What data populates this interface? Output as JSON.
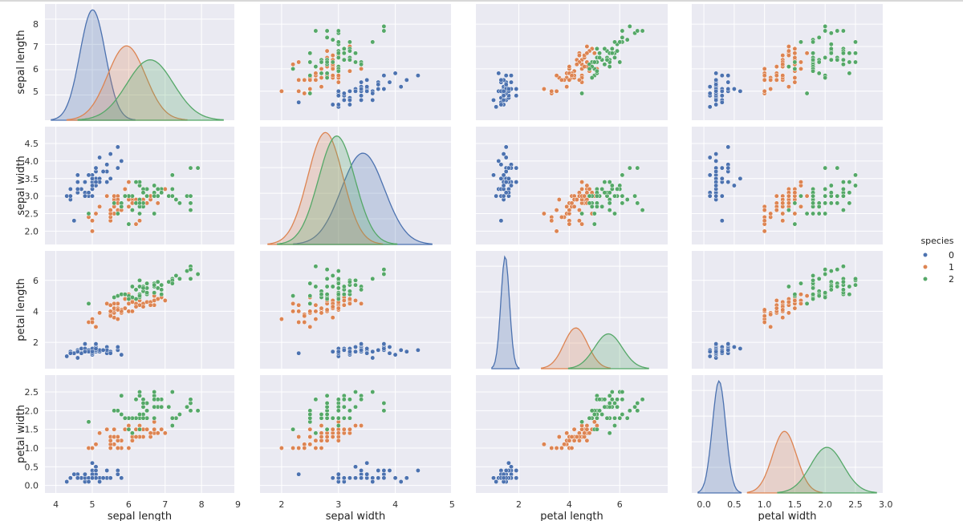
{
  "chart_data": {
    "type": "pairplot",
    "title": "",
    "variables": [
      "sepal length",
      "sepal width",
      "petal length",
      "petal width"
    ],
    "axis_labels": {
      "x": [
        "sepal length",
        "sepal width",
        "petal length",
        "petal width"
      ],
      "y": [
        "sepal length",
        "sepal width",
        "petal length",
        "petal width"
      ]
    },
    "ranges": [
      [
        3.7,
        8.9
      ],
      [
        1.62,
        4.98
      ],
      [
        0.3,
        7.9
      ],
      [
        -0.2,
        2.95
      ]
    ],
    "ticks": [
      [
        4,
        5,
        6,
        7,
        8,
        9
      ],
      [
        2,
        3,
        4,
        5
      ],
      [
        2,
        4,
        6
      ],
      [
        0.0,
        0.5,
        1.0,
        1.5,
        2.0,
        2.5,
        3.0
      ]
    ],
    "y_ticks": [
      [
        "5",
        "6",
        "7",
        "8"
      ],
      [
        "2.0",
        "2.5",
        "3.0",
        "3.5",
        "4.0",
        "4.5"
      ],
      [
        "2",
        "4",
        "6"
      ],
      [
        "0.0",
        "0.5",
        "1.0",
        "1.5",
        "2.0",
        "2.5"
      ]
    ],
    "x_ticks": [
      [
        "4",
        "5",
        "6",
        "7",
        "8",
        "9"
      ],
      [
        "2",
        "3",
        "4",
        "5"
      ],
      [
        "2",
        "4",
        "6"
      ],
      [
        "0.0",
        "0.5",
        "1.0",
        "1.5",
        "2.0",
        "2.5",
        "3.0"
      ]
    ],
    "diag_kde": [
      {
        "name": "0",
        "mean": [
          5.01,
          3.43,
          1.46,
          0.25
        ],
        "sd": [
          0.35,
          0.38,
          0.17,
          0.11
        ]
      },
      {
        "name": "1",
        "mean": [
          5.94,
          2.77,
          4.26,
          1.33
        ],
        "sd": [
          0.52,
          0.31,
          0.47,
          0.2
        ]
      },
      {
        "name": "2",
        "mean": [
          6.59,
          2.97,
          5.55,
          2.03
        ],
        "sd": [
          0.64,
          0.32,
          0.55,
          0.27
        ]
      }
    ],
    "legend": {
      "title": "species",
      "position": "right",
      "entries": [
        {
          "label": "0",
          "color": "#4c72b0"
        },
        {
          "label": "1",
          "color": "#dd8452"
        },
        {
          "label": "2",
          "color": "#55a868"
        }
      ]
    },
    "style": {
      "panel_background": "#eaeaf2",
      "grid_color": "#ffffff",
      "point_edge": "#ffffff",
      "grid": true
    },
    "series": [
      {
        "name": "0",
        "points": [
          [
            5.1,
            3.5,
            1.4,
            0.2
          ],
          [
            4.9,
            3.0,
            1.4,
            0.2
          ],
          [
            4.7,
            3.2,
            1.3,
            0.2
          ],
          [
            4.6,
            3.1,
            1.5,
            0.2
          ],
          [
            5.0,
            3.6,
            1.4,
            0.2
          ],
          [
            5.4,
            3.9,
            1.7,
            0.4
          ],
          [
            4.6,
            3.4,
            1.4,
            0.3
          ],
          [
            5.0,
            3.4,
            1.5,
            0.2
          ],
          [
            4.4,
            2.9,
            1.4,
            0.2
          ],
          [
            4.9,
            3.1,
            1.5,
            0.1
          ],
          [
            5.4,
            3.7,
            1.5,
            0.2
          ],
          [
            4.8,
            3.4,
            1.6,
            0.2
          ],
          [
            4.8,
            3.0,
            1.4,
            0.1
          ],
          [
            4.3,
            3.0,
            1.1,
            0.1
          ],
          [
            5.8,
            4.0,
            1.2,
            0.2
          ],
          [
            5.7,
            4.4,
            1.5,
            0.4
          ],
          [
            5.4,
            3.9,
            1.3,
            0.4
          ],
          [
            5.1,
            3.5,
            1.4,
            0.3
          ],
          [
            5.7,
            3.8,
            1.7,
            0.3
          ],
          [
            5.1,
            3.8,
            1.5,
            0.3
          ],
          [
            5.4,
            3.4,
            1.7,
            0.2
          ],
          [
            5.1,
            3.7,
            1.5,
            0.4
          ],
          [
            4.6,
            3.6,
            1.0,
            0.2
          ],
          [
            5.1,
            3.3,
            1.7,
            0.5
          ],
          [
            4.8,
            3.4,
            1.9,
            0.2
          ],
          [
            5.0,
            3.0,
            1.6,
            0.2
          ],
          [
            5.0,
            3.4,
            1.6,
            0.4
          ],
          [
            5.2,
            3.5,
            1.5,
            0.2
          ],
          [
            5.2,
            3.4,
            1.4,
            0.2
          ],
          [
            4.7,
            3.2,
            1.6,
            0.2
          ],
          [
            4.8,
            3.1,
            1.6,
            0.2
          ],
          [
            5.4,
            3.4,
            1.5,
            0.4
          ],
          [
            5.2,
            4.1,
            1.5,
            0.1
          ],
          [
            5.5,
            4.2,
            1.4,
            0.2
          ],
          [
            4.9,
            3.1,
            1.5,
            0.2
          ],
          [
            5.0,
            3.2,
            1.2,
            0.2
          ],
          [
            5.5,
            3.5,
            1.3,
            0.2
          ],
          [
            4.9,
            3.6,
            1.4,
            0.1
          ],
          [
            4.4,
            3.0,
            1.3,
            0.2
          ],
          [
            5.1,
            3.4,
            1.5,
            0.2
          ],
          [
            5.0,
            3.5,
            1.3,
            0.3
          ],
          [
            4.5,
            2.3,
            1.3,
            0.3
          ],
          [
            4.4,
            3.2,
            1.3,
            0.2
          ],
          [
            5.0,
            3.5,
            1.6,
            0.6
          ],
          [
            5.1,
            3.8,
            1.9,
            0.4
          ],
          [
            4.8,
            3.0,
            1.4,
            0.3
          ],
          [
            5.1,
            3.8,
            1.6,
            0.2
          ],
          [
            4.6,
            3.2,
            1.4,
            0.2
          ],
          [
            5.3,
            3.7,
            1.5,
            0.2
          ],
          [
            5.0,
            3.3,
            1.4,
            0.2
          ]
        ]
      },
      {
        "name": "1",
        "points": [
          [
            7.0,
            3.2,
            4.7,
            1.4
          ],
          [
            6.4,
            3.2,
            4.5,
            1.5
          ],
          [
            6.9,
            3.1,
            4.9,
            1.5
          ],
          [
            5.5,
            2.3,
            4.0,
            1.3
          ],
          [
            6.5,
            2.8,
            4.6,
            1.5
          ],
          [
            5.7,
            2.8,
            4.5,
            1.3
          ],
          [
            6.3,
            3.3,
            4.7,
            1.6
          ],
          [
            4.9,
            2.4,
            3.3,
            1.0
          ],
          [
            6.6,
            2.9,
            4.6,
            1.3
          ],
          [
            5.2,
            2.7,
            3.9,
            1.4
          ],
          [
            5.0,
            2.0,
            3.5,
            1.0
          ],
          [
            5.9,
            3.0,
            4.2,
            1.5
          ],
          [
            6.0,
            2.2,
            4.0,
            1.0
          ],
          [
            6.1,
            2.9,
            4.7,
            1.4
          ],
          [
            5.6,
            2.9,
            3.6,
            1.3
          ],
          [
            6.7,
            3.1,
            4.4,
            1.4
          ],
          [
            5.6,
            3.0,
            4.5,
            1.5
          ],
          [
            5.8,
            2.7,
            4.1,
            1.0
          ],
          [
            6.2,
            2.2,
            4.5,
            1.5
          ],
          [
            5.6,
            2.5,
            3.9,
            1.1
          ],
          [
            5.9,
            3.2,
            4.8,
            1.8
          ],
          [
            6.1,
            2.8,
            4.0,
            1.3
          ],
          [
            6.3,
            2.5,
            4.9,
            1.5
          ],
          [
            6.1,
            2.8,
            4.7,
            1.2
          ],
          [
            6.4,
            2.9,
            4.3,
            1.3
          ],
          [
            6.6,
            3.0,
            4.4,
            1.4
          ],
          [
            6.8,
            2.8,
            4.8,
            1.4
          ],
          [
            6.7,
            3.0,
            5.0,
            1.7
          ],
          [
            6.0,
            2.9,
            4.5,
            1.5
          ],
          [
            5.7,
            2.6,
            3.5,
            1.0
          ],
          [
            5.5,
            2.4,
            3.8,
            1.1
          ],
          [
            5.5,
            2.4,
            3.7,
            1.0
          ],
          [
            5.8,
            2.7,
            3.9,
            1.2
          ],
          [
            6.0,
            2.7,
            5.1,
            1.6
          ],
          [
            5.4,
            3.0,
            4.5,
            1.5
          ],
          [
            6.0,
            3.4,
            4.5,
            1.6
          ],
          [
            6.7,
            3.1,
            4.7,
            1.5
          ],
          [
            6.3,
            2.3,
            4.4,
            1.3
          ],
          [
            5.6,
            3.0,
            4.1,
            1.3
          ],
          [
            5.5,
            2.5,
            4.0,
            1.3
          ],
          [
            5.5,
            2.6,
            4.4,
            1.2
          ],
          [
            6.1,
            3.0,
            4.6,
            1.4
          ],
          [
            5.8,
            2.6,
            4.0,
            1.2
          ],
          [
            5.0,
            2.3,
            3.3,
            1.0
          ],
          [
            5.6,
            2.7,
            4.2,
            1.3
          ],
          [
            5.7,
            3.0,
            4.2,
            1.2
          ],
          [
            5.7,
            2.9,
            4.2,
            1.3
          ],
          [
            6.2,
            2.9,
            4.3,
            1.3
          ],
          [
            5.1,
            2.5,
            3.0,
            1.1
          ],
          [
            5.7,
            2.8,
            4.1,
            1.3
          ]
        ]
      },
      {
        "name": "2",
        "points": [
          [
            6.3,
            3.3,
            6.0,
            2.5
          ],
          [
            5.8,
            2.7,
            5.1,
            1.9
          ],
          [
            7.1,
            3.0,
            5.9,
            2.1
          ],
          [
            6.3,
            2.9,
            5.6,
            1.8
          ],
          [
            6.5,
            3.0,
            5.8,
            2.2
          ],
          [
            7.6,
            3.0,
            6.6,
            2.1
          ],
          [
            4.9,
            2.5,
            4.5,
            1.7
          ],
          [
            7.3,
            2.9,
            6.3,
            1.8
          ],
          [
            6.7,
            2.5,
            5.8,
            1.8
          ],
          [
            7.2,
            3.6,
            6.1,
            2.5
          ],
          [
            6.5,
            3.2,
            5.1,
            2.0
          ],
          [
            6.4,
            2.7,
            5.3,
            1.9
          ],
          [
            6.8,
            3.0,
            5.5,
            2.1
          ],
          [
            5.7,
            2.5,
            5.0,
            2.0
          ],
          [
            5.8,
            2.8,
            5.1,
            2.4
          ],
          [
            6.4,
            3.2,
            5.3,
            2.3
          ],
          [
            6.5,
            3.0,
            5.5,
            1.8
          ],
          [
            7.7,
            3.8,
            6.7,
            2.2
          ],
          [
            7.7,
            2.6,
            6.9,
            2.3
          ],
          [
            6.0,
            2.2,
            5.0,
            1.5
          ],
          [
            6.9,
            3.2,
            5.7,
            2.3
          ],
          [
            5.6,
            2.8,
            4.9,
            2.0
          ],
          [
            7.7,
            2.8,
            6.7,
            2.0
          ],
          [
            6.3,
            2.7,
            4.9,
            1.8
          ],
          [
            6.7,
            3.3,
            5.7,
            2.1
          ],
          [
            7.2,
            3.2,
            6.0,
            1.8
          ],
          [
            6.2,
            2.8,
            4.8,
            1.8
          ],
          [
            6.1,
            3.0,
            4.9,
            1.8
          ],
          [
            6.4,
            2.8,
            5.6,
            2.1
          ],
          [
            7.2,
            3.0,
            5.8,
            1.6
          ],
          [
            7.4,
            2.8,
            6.1,
            1.9
          ],
          [
            7.9,
            3.8,
            6.4,
            2.0
          ],
          [
            6.4,
            2.8,
            5.6,
            2.2
          ],
          [
            6.3,
            2.8,
            5.1,
            1.5
          ],
          [
            6.1,
            2.6,
            5.6,
            1.4
          ],
          [
            7.7,
            3.0,
            6.1,
            2.3
          ],
          [
            6.3,
            3.4,
            5.6,
            2.4
          ],
          [
            6.4,
            3.1,
            5.5,
            1.8
          ],
          [
            6.0,
            3.0,
            4.8,
            1.8
          ],
          [
            6.9,
            3.1,
            5.4,
            2.1
          ],
          [
            6.7,
            3.1,
            5.6,
            2.4
          ],
          [
            6.9,
            3.1,
            5.1,
            2.3
          ],
          [
            5.8,
            2.7,
            5.1,
            1.9
          ],
          [
            6.8,
            3.2,
            5.9,
            2.3
          ],
          [
            6.7,
            3.3,
            5.7,
            2.5
          ],
          [
            6.7,
            3.0,
            5.2,
            2.3
          ],
          [
            6.3,
            2.5,
            5.0,
            1.9
          ],
          [
            6.5,
            3.0,
            5.2,
            2.0
          ],
          [
            6.2,
            3.4,
            5.4,
            2.3
          ],
          [
            5.9,
            3.0,
            5.1,
            1.8
          ]
        ]
      }
    ]
  }
}
